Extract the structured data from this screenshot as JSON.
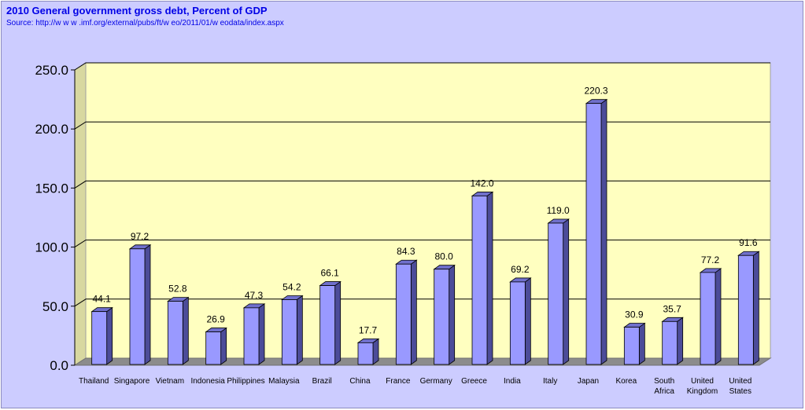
{
  "title": "2010 General government gross debt, Percent of GDP",
  "source": "Source: http://w w w .imf.org/external/pubs/ft/w eo/2011/01/w eodata/index.aspx",
  "colors": {
    "background": "#ccccff",
    "plot_back": "#ffffc0",
    "plot_floor": "#8c8c8c",
    "plot_left_wall": "#d8d8a0",
    "bar_front": "#9999ff",
    "bar_side": "#4c4c99",
    "bar_top": "#7070cc",
    "title": "#0000e6",
    "gridline": "#000000"
  },
  "chart_data": {
    "type": "bar",
    "categories": [
      [
        "Thailand"
      ],
      [
        "Singapore"
      ],
      [
        "Vietnam"
      ],
      [
        "Indonesia"
      ],
      [
        "Philippines"
      ],
      [
        "Malaysia"
      ],
      [
        "Brazil"
      ],
      [
        "China"
      ],
      [
        "France"
      ],
      [
        "Germany"
      ],
      [
        "Greece"
      ],
      [
        "India"
      ],
      [
        "Italy"
      ],
      [
        "Japan"
      ],
      [
        "Korea"
      ],
      [
        "South",
        "Africa"
      ],
      [
        "United",
        "Kingdom"
      ],
      [
        "United",
        "States"
      ]
    ],
    "values": [
      44.1,
      97.2,
      52.8,
      26.9,
      47.3,
      54.2,
      66.1,
      17.7,
      84.3,
      80.0,
      142.0,
      69.2,
      119.0,
      220.3,
      30.9,
      35.7,
      77.2,
      91.6
    ],
    "value_labels": [
      "44.1",
      "97.2",
      "52.8",
      "26.9",
      "47.3",
      "54.2",
      "66.1",
      "17.7",
      "84.3",
      "80.0",
      "142.0",
      "69.2",
      "119.0",
      "220.3",
      "30.9",
      "35.7",
      "77.2",
      "91.6"
    ],
    "yticks": [
      "0.0",
      "50.0",
      "100.0",
      "150.0",
      "200.0",
      "250.0"
    ],
    "ylim": [
      0,
      250
    ],
    "xlabel": "",
    "ylabel": "",
    "grid": true,
    "three_d": true
  }
}
